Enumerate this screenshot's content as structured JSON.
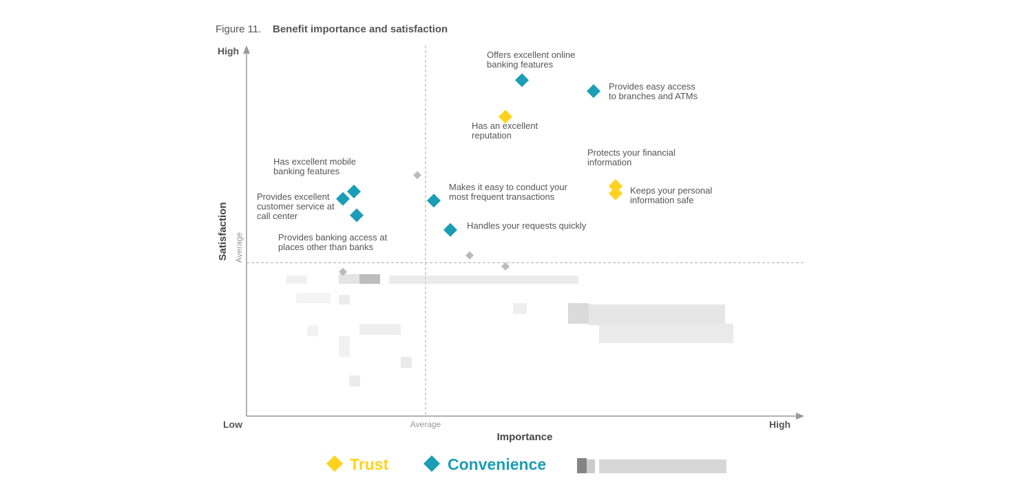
{
  "figure": {
    "prefix": "Figure 11.",
    "title": "Benefit importance and satisfaction"
  },
  "axes": {
    "x_title": "Importance",
    "y_title": "Satisfaction",
    "origin_label": "Low",
    "x_high_label": "High",
    "y_high_label": "High",
    "x_average_label": "Average",
    "y_average_label": "Average"
  },
  "chart_data": {
    "type": "scatter",
    "xlabel": "Importance",
    "ylabel": "Satisfaction",
    "xlim": [
      0,
      100
    ],
    "ylim": [
      0,
      100
    ],
    "reference_lines": {
      "x_average": 32.5,
      "y_average": 42
    },
    "grid": false,
    "legend_position": "bottom",
    "series": [
      {
        "name": "Trust",
        "color": "#FFD21E",
        "points": [
          {
            "label": "Has an excellent reputation",
            "x": 47,
            "y": 82
          },
          {
            "label": "Protects your financial information",
            "x": 67,
            "y": 63
          },
          {
            "label": "Keeps your personal information safe",
            "x": 67,
            "y": 61
          }
        ]
      },
      {
        "name": "Convenience",
        "color": "#1B9DB6",
        "points": [
          {
            "label": "Offers excellent online banking features",
            "x": 50,
            "y": 92
          },
          {
            "label": "Provides easy access to branches and ATMs",
            "x": 63,
            "y": 89
          },
          {
            "label": "Has excellent mobile banking features",
            "x": 19.5,
            "y": 61.5
          },
          {
            "label": "Provides excellent customer service at call center",
            "x": 17.5,
            "y": 59.5
          },
          {
            "label": "Provides banking access at places other than banks",
            "x": 20,
            "y": 55
          },
          {
            "label": "Makes it easy to conduct your most frequent transactions",
            "x": 34,
            "y": 59
          },
          {
            "label": "Handles your requests quickly",
            "x": 37,
            "y": 51
          }
        ]
      },
      {
        "name": "",
        "color": "#BBBBBB",
        "points": [
          {
            "x": 31,
            "y": 66
          },
          {
            "x": 40.5,
            "y": 44
          },
          {
            "x": 47,
            "y": 41
          },
          {
            "x": 17.5,
            "y": 39.5
          }
        ]
      }
    ],
    "legend": [
      "Trust",
      "Convenience"
    ]
  }
}
